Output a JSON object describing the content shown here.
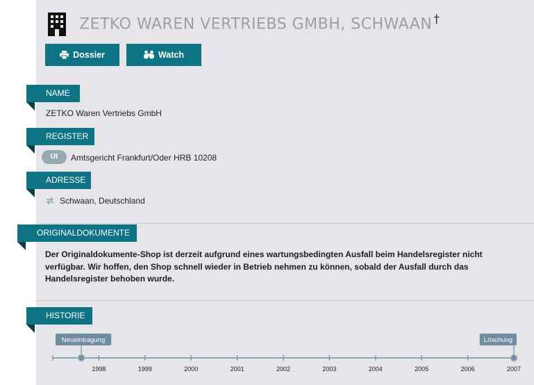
{
  "header": {
    "title": "ZETKO WAREN VERTRIEBS GMBH, SCHWAAN",
    "dagger": "†",
    "icon": "building-icon"
  },
  "actions": {
    "dossier_label": "Dossier",
    "dossier_icon": "printer-icon",
    "watch_label": "Watch",
    "watch_icon": "binoculars-icon"
  },
  "sections": {
    "name": {
      "label": "NAME",
      "value": "ZETKO Waren Vertriebs GmbH"
    },
    "register": {
      "label": "REGISTER",
      "badge": "Ut",
      "value": "Amtsgericht Frankfurt/Oder HRB 10208"
    },
    "address": {
      "label": "ADRESSE",
      "icon": "transfer-arrows-icon",
      "value": "Schwaan, Deutschland"
    },
    "original": {
      "label": "ORIGINALDOKUMENTE",
      "text": "Der Originaldokumente-Shop ist derzeit aufgrund eines wartungsbedingten Ausfall beim Handelsregister nicht verfügbar. Wir hoffen, den Shop schnell wieder in Betrieb nehmen zu können, sobald der Ausfall durch das Handelsregister behoben wurde."
    },
    "history": {
      "label": "HISTORIE",
      "years": [
        "1998",
        "1999",
        "2000",
        "2001",
        "2002",
        "2003",
        "2004",
        "2005",
        "2006",
        "2007"
      ],
      "events": [
        {
          "label": "Neueintragung",
          "year": 1997.62
        },
        {
          "label": "Löschung",
          "year": 2007.0
        }
      ]
    }
  },
  "colors": {
    "accent": "#0e7385",
    "accent_dark": "#083f4a",
    "panel_bg": "#e6e6ea",
    "title_gray": "#9aa0a8",
    "timeline": "#6f8d9f"
  }
}
